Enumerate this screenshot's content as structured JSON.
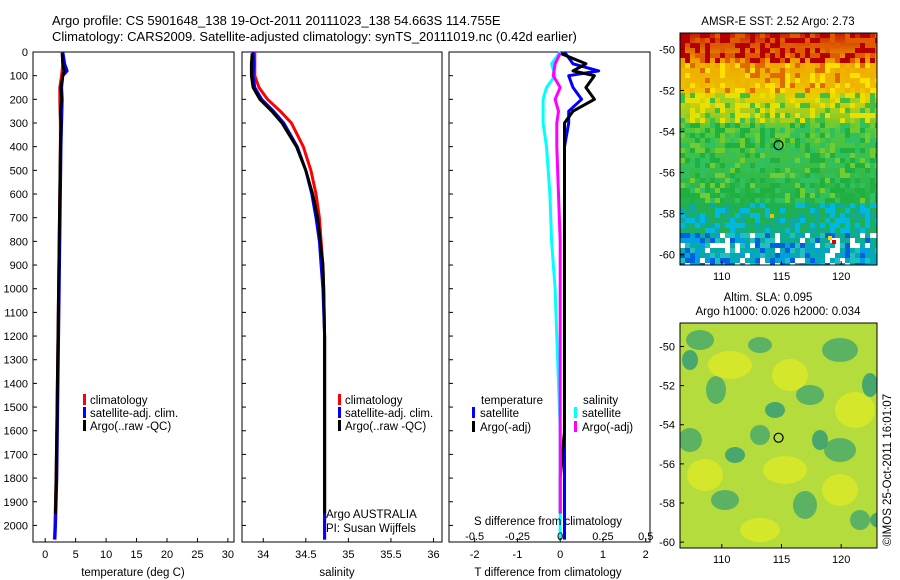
{
  "header": {
    "title_line1": "Argo profile: CS 5901648_138 19-Oct-2011 20111023_138 54.663S 114.755E",
    "title_line2": "Climatology: CARS2009. Satellite-adjusted climatology: synTS_20111019.nc (0.42d earlier)"
  },
  "colors": {
    "climatology": "#ff0000",
    "satellite": "#0000ff",
    "argo": "#000000",
    "salinity_satellite": "#00ffff",
    "salinity_argo": "#ff00ff"
  },
  "chart_data": [
    {
      "type": "line",
      "id": "temperature",
      "xlabel": "temperature (deg C)",
      "ylabel": "",
      "xlim": [
        -2,
        31
      ],
      "ylim": [
        2070,
        0
      ],
      "xticks": [
        "0",
        "5",
        "10",
        "15",
        "20",
        "25",
        "30"
      ],
      "xtick_values": [
        0,
        5,
        10,
        15,
        20,
        25,
        30
      ],
      "yticks": [
        "0",
        "100",
        "200",
        "300",
        "400",
        "500",
        "600",
        "700",
        "800",
        "900",
        "1000",
        "1100",
        "1200",
        "1300",
        "1400",
        "1500",
        "1600",
        "1700",
        "1800",
        "1900",
        "2000"
      ],
      "ytick_values": [
        0,
        100,
        200,
        300,
        400,
        500,
        600,
        700,
        800,
        900,
        1000,
        1100,
        1200,
        1300,
        1400,
        1500,
        1600,
        1700,
        1800,
        1900,
        2000
      ],
      "legend": [
        "climatology",
        "satellite-adj. clim.",
        "Argo(..raw -QC)"
      ],
      "series": [
        {
          "name": "climatology",
          "color": "#ff0000",
          "depth": [
            0,
            50,
            100,
            150,
            200,
            300,
            400,
            600,
            800,
            1000,
            1200,
            1400,
            1600,
            1800,
            2000,
            2060
          ],
          "values": [
            2.8,
            2.9,
            2.7,
            2.4,
            2.4,
            2.5,
            2.5,
            2.4,
            2.3,
            2.2,
            2.1,
            2.0,
            1.9,
            1.8,
            1.6,
            1.5
          ]
        },
        {
          "name": "satellite-adj. clim.",
          "color": "#0000ff",
          "depth": [
            0,
            50,
            80,
            100,
            150,
            200,
            300,
            400,
            600,
            800,
            1000,
            1200,
            1400,
            1600,
            1800,
            2000,
            2060
          ],
          "values": [
            2.9,
            3.2,
            3.6,
            2.9,
            2.7,
            2.8,
            2.7,
            2.6,
            2.5,
            2.4,
            2.3,
            2.2,
            2.1,
            2.0,
            1.9,
            1.7,
            1.6
          ]
        },
        {
          "name": "Argo(..raw -QC)",
          "color": "#000000",
          "depth": [
            5,
            50,
            80,
            100,
            150,
            200,
            250,
            300,
            400,
            600,
            800,
            1000,
            1200,
            1400,
            1600,
            1800,
            1950
          ],
          "values": [
            2.8,
            2.9,
            3.1,
            2.9,
            2.6,
            2.7,
            2.5,
            2.6,
            2.5,
            2.4,
            2.3,
            2.2,
            2.1,
            2.0,
            1.9,
            1.8,
            1.7
          ]
        }
      ]
    },
    {
      "type": "line",
      "id": "salinity",
      "xlabel": "salinity",
      "xlim": [
        33.75,
        36.1
      ],
      "ylim": [
        2070,
        0
      ],
      "xticks": [
        "34",
        "34.5",
        "35",
        "35.5",
        "36"
      ],
      "xtick_values": [
        34,
        34.5,
        35,
        35.5,
        36
      ],
      "legend": [
        "climatology",
        "satellite-adj. clim.",
        "Argo(..raw -QC)"
      ],
      "annotations": [
        "Argo AUSTRALIA",
        "PI: Susan Wijffels"
      ],
      "series": [
        {
          "name": "climatology",
          "color": "#ff0000",
          "depth": [
            0,
            100,
            150,
            200,
            250,
            300,
            400,
            500,
            600,
            700,
            800,
            900,
            1000,
            1200,
            1400,
            1600,
            1800,
            2000,
            2060
          ],
          "values": [
            33.9,
            33.9,
            33.95,
            34.05,
            34.2,
            34.33,
            34.47,
            34.56,
            34.62,
            34.66,
            34.68,
            34.7,
            34.71,
            34.72,
            34.72,
            34.72,
            34.72,
            34.72,
            34.72
          ]
        },
        {
          "name": "satellite-adj. clim.",
          "color": "#0000ff",
          "depth": [
            0,
            50,
            100,
            150,
            200,
            250,
            300,
            400,
            500,
            600,
            700,
            800,
            900,
            1000,
            1200,
            1400,
            1600,
            1800,
            2000,
            2060
          ],
          "values": [
            33.88,
            33.89,
            33.88,
            33.9,
            33.98,
            34.12,
            34.24,
            34.4,
            34.5,
            34.57,
            34.62,
            34.66,
            34.68,
            34.7,
            34.72,
            34.72,
            34.72,
            34.72,
            34.72,
            34.72
          ]
        },
        {
          "name": "Argo(..raw -QC)",
          "color": "#000000",
          "depth": [
            5,
            50,
            100,
            150,
            200,
            250,
            300,
            400,
            500,
            600,
            700,
            800,
            900,
            1000,
            1200,
            1400,
            1600,
            1800,
            1950
          ],
          "values": [
            33.87,
            33.86,
            33.86,
            33.88,
            33.96,
            34.1,
            34.22,
            34.39,
            34.5,
            34.58,
            34.64,
            34.67,
            34.7,
            34.71,
            34.72,
            34.72,
            34.72,
            34.72,
            34.72
          ]
        }
      ]
    },
    {
      "type": "line",
      "id": "difference",
      "xlabel": "T difference from climatology",
      "xlim": [
        -2.6,
        2.1
      ],
      "ylim": [
        2070,
        0
      ],
      "xticks": [
        "-2",
        "-1",
        "0",
        "1",
        "2"
      ],
      "xtick_values": [
        -2,
        -1,
        0,
        1,
        2
      ],
      "top_axis_label": "S difference from climatology",
      "top_xticks": [
        "-0.5",
        "-0.25",
        "0",
        "0.25",
        "0.5"
      ],
      "top_xtick_values": [
        -0.5,
        -0.25,
        0,
        0.25,
        0.5
      ],
      "legend_temperature_title": "temperature",
      "legend_salinity_title": "salinity",
      "legend": [
        "satellite",
        "Argo(-adj)",
        "satellite",
        "Argo(-adj)"
      ],
      "series": [
        {
          "name": "temperature satellite",
          "color": "#0000ff",
          "depth": [
            0,
            50,
            80,
            100,
            150,
            200,
            250,
            300,
            400,
            600,
            800,
            1000,
            1200,
            1400,
            1600,
            1800,
            2000,
            2060
          ],
          "values": [
            0.1,
            0.3,
            0.9,
            0.2,
            0.3,
            0.5,
            0.2,
            0.2,
            0.1,
            0.1,
            0.1,
            0.1,
            0.1,
            0.1,
            0.1,
            0.1,
            0.1,
            0.1
          ]
        },
        {
          "name": "temperature Argo(-adj)",
          "color": "#000000",
          "depth": [
            5,
            50,
            80,
            100,
            150,
            200,
            250,
            300,
            400,
            600,
            800,
            1000,
            1200,
            1400,
            1600,
            1800,
            1950
          ],
          "values": [
            0.0,
            0.6,
            0.3,
            0.8,
            0.6,
            0.8,
            0.3,
            0.1,
            0.1,
            0.1,
            0.1,
            0.1,
            0.1,
            0.1,
            0.1,
            0.0,
            0.0
          ]
        },
        {
          "name": "salinity satellite",
          "color": "#00ffff",
          "depth": [
            0,
            50,
            100,
            150,
            200,
            300,
            400,
            600,
            800,
            1000,
            1200,
            1400,
            1600,
            1800,
            2000,
            2060
          ],
          "values": [
            0.0,
            -0.05,
            -0.03,
            -0.08,
            -0.1,
            -0.1,
            -0.08,
            -0.06,
            -0.05,
            -0.03,
            -0.02,
            -0.01,
            0.0,
            0.0,
            0.0,
            0.0
          ]
        },
        {
          "name": "salinity Argo(-adj)",
          "color": "#ff00ff",
          "depth": [
            5,
            50,
            100,
            150,
            200,
            250,
            300,
            400,
            600,
            800,
            1000,
            1200,
            1400,
            1600,
            1800,
            1950
          ],
          "values": [
            0.0,
            -0.03,
            -0.04,
            0.0,
            -0.03,
            -0.01,
            -0.02,
            -0.02,
            -0.01,
            0.0,
            0.0,
            0.0,
            0.0,
            0.0,
            0.0,
            0.0
          ]
        }
      ]
    },
    {
      "type": "heatmap",
      "id": "sst_map",
      "title": "AMSR-E SST: 2.52 Argo: 2.73",
      "xlim": [
        106.5,
        123
      ],
      "ylim": [
        -60.5,
        -49.2
      ],
      "xticks": [
        "110",
        "115",
        "120"
      ],
      "xtick_values": [
        110,
        115,
        120
      ],
      "yticks": [
        "-50",
        "-52",
        "-54",
        "-56",
        "-58",
        "-60"
      ],
      "ytick_values": [
        -50,
        -52,
        -54,
        -56,
        -58,
        -60
      ],
      "marker": {
        "lon": 114.755,
        "lat": -54.663
      }
    },
    {
      "type": "heatmap",
      "id": "sla_map",
      "title_line1": "Altim. SLA: 0.095",
      "title_line2": "Argo h1000: 0.026 h2000: 0.034",
      "xlim": [
        106.5,
        123
      ],
      "ylim": [
        -60.3,
        -48.8
      ],
      "xticks": [
        "110",
        "115",
        "120"
      ],
      "xtick_values": [
        110,
        115,
        120
      ],
      "yticks": [
        "-50",
        "-52",
        "-54",
        "-56",
        "-58",
        "-60"
      ],
      "ytick_values": [
        -50,
        -52,
        -54,
        -56,
        -58,
        -60
      ],
      "marker": {
        "lon": 114.755,
        "lat": -54.663
      }
    }
  ],
  "footer": {
    "credit": "©IMOS 25-Oct-2011 16:01:07"
  }
}
